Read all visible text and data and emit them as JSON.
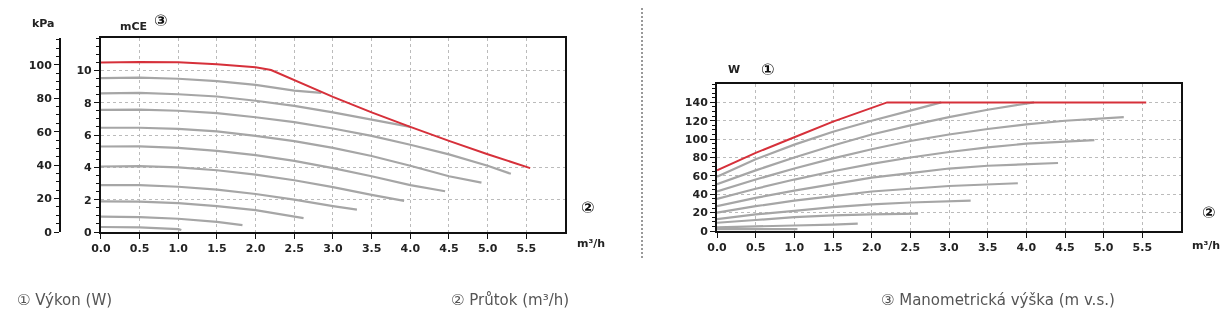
{
  "chart_data": [
    {
      "type": "line",
      "xlabel": "m³/h",
      "ylabel": "mCE",
      "y2label": "kPa",
      "grid": true,
      "marker": "none",
      "line_style": "solid",
      "xlim": [
        0,
        6
      ],
      "xticks": [
        {
          "value": 0,
          "label": "0.0"
        },
        {
          "value": 0.5,
          "label": "0.5"
        },
        {
          "value": 1,
          "label": "1.0"
        },
        {
          "value": 1.5,
          "label": "1.5"
        },
        {
          "value": 2,
          "label": "2.0"
        },
        {
          "value": 2.5,
          "label": "2.5"
        },
        {
          "value": 3,
          "label": "3.0"
        },
        {
          "value": 3.5,
          "label": "3.5"
        },
        {
          "value": 4,
          "label": "4.0"
        },
        {
          "value": 4.5,
          "label": "4.5"
        },
        {
          "value": 5,
          "label": "5.0"
        },
        {
          "value": 5.5,
          "label": "5.5"
        }
      ],
      "ylim": [
        0,
        12
      ],
      "yticks": [
        0,
        2,
        4,
        6,
        8,
        10
      ],
      "y2lim": [
        0,
        116
      ],
      "y2ticks": [
        0,
        20,
        40,
        60,
        80,
        100
      ],
      "annotations": [
        "③",
        "②",
        "① Výkon (W)",
        "② Průtok (m³/h)"
      ],
      "series": [
        {
          "color": "#a6a6a6",
          "x": [
            0,
            0.5,
            1,
            1.5,
            2,
            2.5,
            2.85
          ],
          "values": [
            9.52,
            9.55,
            9.48,
            9.33,
            9.1,
            8.75,
            8.6
          ]
        },
        {
          "color": "#a6a6a6",
          "x": [
            0,
            0.5,
            1,
            1.5,
            2,
            2.5,
            3,
            3.5,
            4
          ],
          "values": [
            8.57,
            8.6,
            8.52,
            8.38,
            8.12,
            7.8,
            7.4,
            6.95,
            6.5
          ]
        },
        {
          "color": "#a6a6a6",
          "x": [
            0,
            0.5,
            1,
            1.5,
            2,
            2.5,
            3,
            3.5,
            4,
            4.5,
            5,
            5.3
          ],
          "values": [
            7.55,
            7.57,
            7.5,
            7.35,
            7.1,
            6.8,
            6.4,
            5.95,
            5.4,
            4.8,
            4.1,
            3.6
          ]
        },
        {
          "color": "#a6a6a6",
          "x": [
            0,
            0.5,
            1,
            1.5,
            2,
            2.5,
            3,
            3.5,
            4,
            4.5,
            4.92
          ],
          "values": [
            6.45,
            6.45,
            6.38,
            6.22,
            5.95,
            5.62,
            5.2,
            4.7,
            4.1,
            3.45,
            3.05
          ]
        },
        {
          "color": "#a6a6a6",
          "x": [
            0,
            0.5,
            1,
            1.5,
            2,
            2.5,
            3,
            3.5,
            4,
            4.45
          ],
          "values": [
            5.29,
            5.3,
            5.2,
            5.02,
            4.75,
            4.4,
            3.95,
            3.45,
            2.9,
            2.52
          ]
        },
        {
          "color": "#a6a6a6",
          "x": [
            0,
            0.5,
            1,
            1.5,
            2,
            2.5,
            3,
            3.5,
            3.92
          ],
          "values": [
            4.05,
            4.08,
            4.0,
            3.82,
            3.55,
            3.2,
            2.78,
            2.3,
            1.93
          ]
        },
        {
          "color": "#a6a6a6",
          "x": [
            0,
            0.5,
            1,
            1.5,
            2,
            2.5,
            3,
            3.31
          ],
          "values": [
            2.9,
            2.9,
            2.8,
            2.62,
            2.35,
            2.0,
            1.6,
            1.38
          ]
        },
        {
          "color": "#a6a6a6",
          "x": [
            0,
            0.5,
            1,
            1.5,
            2,
            2.62
          ],
          "values": [
            1.9,
            1.88,
            1.78,
            1.6,
            1.35,
            0.86
          ]
        },
        {
          "color": "#a6a6a6",
          "x": [
            0,
            0.5,
            1,
            1.5,
            1.83
          ],
          "values": [
            0.95,
            0.92,
            0.82,
            0.63,
            0.43
          ]
        },
        {
          "color": "#a6a6a6",
          "x": [
            0,
            0.5,
            1,
            1.04
          ],
          "values": [
            0.31,
            0.28,
            0.18,
            0.12
          ]
        },
        {
          "color": "#d6303a",
          "x": [
            0,
            0.5,
            1,
            1.5,
            2,
            2.2,
            3,
            3.5,
            4,
            4.5,
            5,
            5.55
          ],
          "values": [
            10.48,
            10.52,
            10.5,
            10.38,
            10.19,
            10.02,
            8.36,
            7.4,
            6.5,
            5.64,
            4.81,
            3.95
          ]
        }
      ]
    },
    {
      "type": "line",
      "xlabel": "m³/h",
      "ylabel": "W",
      "grid": true,
      "marker": "none",
      "line_style": "solid",
      "xlim": [
        0,
        6
      ],
      "xticks": [
        {
          "value": 0,
          "label": "0.0"
        },
        {
          "value": 0.5,
          "label": "0.5"
        },
        {
          "value": 1,
          "label": "1.0"
        },
        {
          "value": 1.5,
          "label": "1.5"
        },
        {
          "value": 2,
          "label": "2.0"
        },
        {
          "value": 2.5,
          "label": "2.5"
        },
        {
          "value": 3,
          "label": "3.0"
        },
        {
          "value": 3.5,
          "label": "3.5"
        },
        {
          "value": 4,
          "label": "4.0"
        },
        {
          "value": 4.5,
          "label": "4.5"
        },
        {
          "value": 5,
          "label": "5.0"
        },
        {
          "value": 5.5,
          "label": "5.5"
        }
      ],
      "ylim": [
        0,
        160
      ],
      "yticks": [
        0,
        20,
        40,
        60,
        80,
        100,
        120,
        140
      ],
      "annotations": [
        "①",
        "②",
        "③ Manometrická výška (m v.s.)"
      ],
      "series": [
        {
          "color": "#a6a6a6",
          "x": [
            0,
            0.5,
            1,
            1.5,
            2,
            2.5,
            2.9
          ],
          "values": [
            59,
            78,
            94,
            108,
            120,
            131,
            140
          ]
        },
        {
          "color": "#a6a6a6",
          "x": [
            0,
            0.5,
            1,
            1.5,
            2,
            2.5,
            3,
            3.5,
            4.1
          ],
          "values": [
            51,
            66,
            80,
            93,
            105,
            115,
            124,
            132,
            140
          ]
        },
        {
          "color": "#a6a6a6",
          "x": [
            0,
            0.5,
            1,
            1.5,
            2,
            2.5,
            3,
            3.5,
            4,
            4.5,
            5.26
          ],
          "values": [
            43,
            56,
            68,
            79,
            89,
            98,
            105,
            111,
            116,
            120,
            124
          ]
        },
        {
          "color": "#a6a6a6",
          "x": [
            0,
            0.5,
            1,
            1.5,
            2,
            2.5,
            3,
            3.5,
            4,
            4.88
          ],
          "values": [
            35,
            46,
            56,
            65,
            73,
            80,
            86,
            91,
            95,
            99
          ]
        },
        {
          "color": "#a6a6a6",
          "x": [
            0,
            0.5,
            1,
            1.5,
            2,
            2.5,
            3,
            3.5,
            4.41
          ],
          "values": [
            27,
            36,
            44,
            51,
            58,
            63,
            68,
            71,
            74
          ]
        },
        {
          "color": "#a6a6a6",
          "x": [
            0,
            0.5,
            1,
            1.5,
            2,
            2.5,
            3,
            3.89
          ],
          "values": [
            20,
            27,
            33,
            38,
            43,
            46,
            49,
            52
          ]
        },
        {
          "color": "#a6a6a6",
          "x": [
            0,
            0.5,
            1,
            1.5,
            2,
            2.5,
            3.28
          ],
          "values": [
            13,
            18,
            22,
            26,
            29,
            31,
            33
          ]
        },
        {
          "color": "#a6a6a6",
          "x": [
            0,
            0.5,
            1,
            1.5,
            2,
            2.6
          ],
          "values": [
            9,
            12,
            15,
            17,
            18,
            19
          ]
        },
        {
          "color": "#a6a6a6",
          "x": [
            0,
            0.5,
            1,
            1.5,
            1.82
          ],
          "values": [
            4,
            5,
            6,
            7,
            8
          ]
        },
        {
          "color": "#a6a6a6",
          "x": [
            0,
            0.5,
            1.04
          ],
          "values": [
            2,
            2,
            2
          ]
        },
        {
          "color": "#d6303a",
          "x": [
            0,
            0.5,
            1,
            1.5,
            2.2,
            5.55
          ],
          "values": [
            66,
            85,
            102,
            119,
            140,
            140
          ]
        }
      ]
    }
  ]
}
